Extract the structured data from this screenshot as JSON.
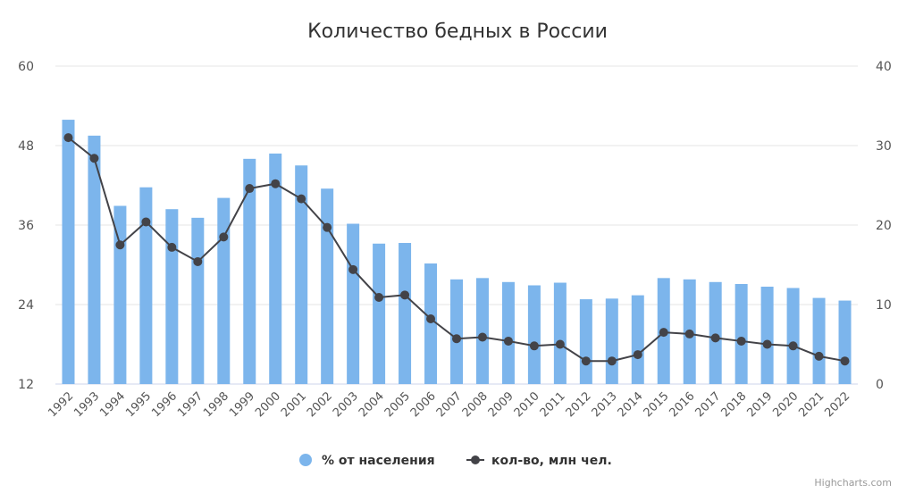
{
  "chart_data": {
    "type": "bar+line",
    "title": "Количество бедных в России",
    "categories": [
      "1992",
      "1993",
      "1994",
      "1995",
      "1996",
      "1997",
      "1998",
      "1999",
      "2000",
      "2001",
      "2002",
      "2003",
      "2004",
      "2005",
      "2006",
      "2007",
      "2008",
      "2009",
      "2010",
      "2011",
      "2012",
      "2013",
      "2014",
      "2015",
      "2016",
      "2017",
      "2018",
      "2019",
      "2020",
      "2021",
      "2022"
    ],
    "series": [
      {
        "name": "% от населения",
        "type": "bar",
        "axis": "left",
        "color": "#7cb5ec",
        "values": [
          51.9,
          49.5,
          38.9,
          41.7,
          38.4,
          37.1,
          40.1,
          46.0,
          46.8,
          45.0,
          41.5,
          36.2,
          33.2,
          33.3,
          30.2,
          27.8,
          28.0,
          27.4,
          26.9,
          27.3,
          24.8,
          24.9,
          25.4,
          28.0,
          27.8,
          27.4,
          27.1,
          26.7,
          26.5,
          25.0,
          24.6
        ]
      },
      {
        "name": "кол-во, млн чел.",
        "type": "line",
        "axis": "right",
        "color": "#434348",
        "values": [
          31.0,
          28.4,
          17.5,
          20.4,
          17.2,
          15.4,
          18.5,
          24.6,
          25.2,
          23.3,
          19.7,
          14.4,
          10.9,
          11.2,
          8.2,
          5.7,
          5.9,
          5.4,
          4.8,
          5.0,
          2.9,
          2.9,
          3.7,
          6.5,
          6.3,
          5.8,
          5.4,
          5.0,
          4.8,
          3.5,
          2.9
        ]
      }
    ],
    "left_axis": {
      "min": 12,
      "max": 60,
      "ticks": [
        12,
        24,
        36,
        48,
        60
      ]
    },
    "right_axis": {
      "min": 0,
      "max": 40,
      "ticks": [
        0,
        10,
        20,
        30,
        40
      ]
    },
    "grid": true,
    "legend": "bottom-center",
    "credit": "Highcharts.com"
  }
}
